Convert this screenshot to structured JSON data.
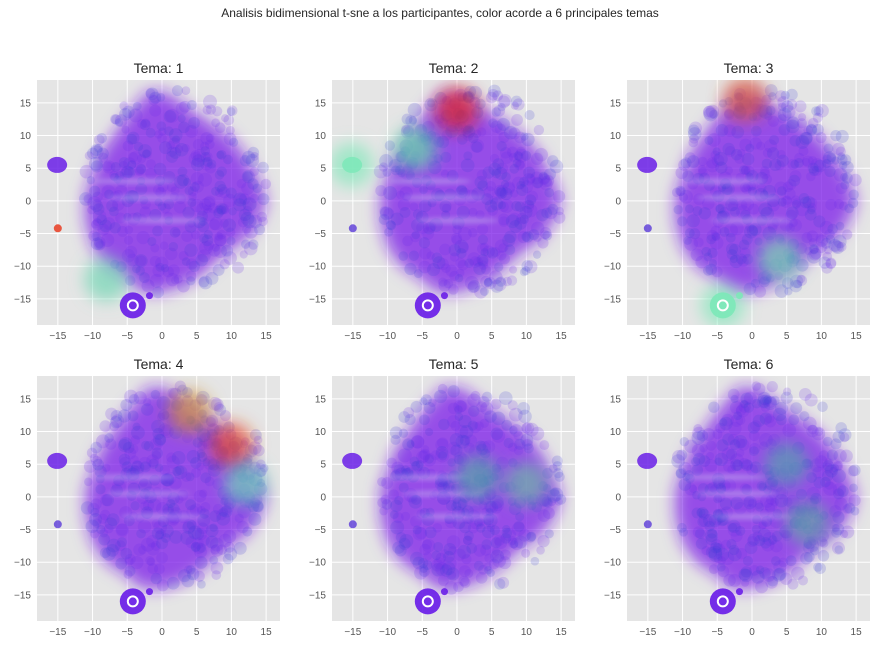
{
  "figure": {
    "suptitle": "Analisis bidimensional t-sne a los participantes, color acorde a 6 principales temas",
    "background": "#ffffff",
    "panel_background": "#e5e5e5",
    "grid_color": "#ffffff"
  },
  "chart_data": [
    {
      "type": "scatter",
      "title": "Tema: 1",
      "xlim": [
        -18,
        17
      ],
      "ylim": [
        -19,
        18.5
      ],
      "xticks": [
        -15,
        -10,
        -5,
        0,
        5,
        10,
        15
      ],
      "yticks": [
        -15,
        -10,
        -5,
        0,
        5,
        10,
        15
      ],
      "grid": true,
      "colormap": "rainbow",
      "base_color": "#7b1ce8",
      "highlight_regions": [
        {
          "x": -15,
          "y": -4.2,
          "color": "#e8452c",
          "note": "isolated point"
        },
        {
          "x": -8,
          "y": -12,
          "color": "#6ad6b0"
        }
      ]
    },
    {
      "type": "scatter",
      "title": "Tema: 2",
      "xlim": [
        -18,
        17
      ],
      "ylim": [
        -19,
        18.5
      ],
      "xticks": [
        -15,
        -10,
        -5,
        0,
        5,
        10,
        15
      ],
      "yticks": [
        -15,
        -10,
        -5,
        0,
        5,
        10,
        15
      ],
      "grid": true,
      "colormap": "rainbow",
      "base_color": "#7b1ce8",
      "highlight_regions": [
        {
          "x": 0,
          "y": 14,
          "color": "#e8220f"
        },
        {
          "x": -6,
          "y": 8,
          "color": "#5ee8a0"
        },
        {
          "x": -15.2,
          "y": 5.5,
          "color": "#7de8b8"
        }
      ]
    },
    {
      "type": "scatter",
      "title": "Tema: 3",
      "xlim": [
        -18,
        17
      ],
      "ylim": [
        -19,
        18.5
      ],
      "xticks": [
        -15,
        -10,
        -5,
        0,
        5,
        10,
        15
      ],
      "yticks": [
        -15,
        -10,
        -5,
        0,
        5,
        10,
        15
      ],
      "grid": true,
      "colormap": "rainbow",
      "base_color": "#7b1ce8",
      "highlight_regions": [
        {
          "x": -1,
          "y": 15.5,
          "color": "#e05a2a"
        },
        {
          "x": 4,
          "y": -9,
          "color": "#76e8a8"
        },
        {
          "x": -4.2,
          "y": -16,
          "color": "#7de8b8"
        }
      ]
    },
    {
      "type": "scatter",
      "title": "Tema: 4",
      "xlim": [
        -18,
        17
      ],
      "ylim": [
        -19,
        18.5
      ],
      "xticks": [
        -15,
        -10,
        -5,
        0,
        5,
        10,
        15
      ],
      "yticks": [
        -15,
        -10,
        -5,
        0,
        5,
        10,
        15
      ],
      "grid": true,
      "colormap": "rainbow",
      "base_color": "#7b1ce8",
      "highlight_regions": [
        {
          "x": 10,
          "y": 8,
          "color": "#e84a1c"
        },
        {
          "x": 4,
          "y": 13,
          "color": "#d09030"
        },
        {
          "x": 12,
          "y": 2,
          "color": "#6ae0b0"
        }
      ]
    },
    {
      "type": "scatter",
      "title": "Tema: 5",
      "xlim": [
        -18,
        17
      ],
      "ylim": [
        -19,
        18.5
      ],
      "xticks": [
        -15,
        -10,
        -5,
        0,
        5,
        10,
        15
      ],
      "yticks": [
        -15,
        -10,
        -5,
        0,
        5,
        10,
        15
      ],
      "grid": true,
      "colormap": "rainbow",
      "base_color": "#7b1ce8",
      "highlight_regions": [
        {
          "x": 3,
          "y": 3,
          "color": "#4fb0a0"
        },
        {
          "x": 10,
          "y": 2,
          "color": "#6ac0a0"
        }
      ]
    },
    {
      "type": "scatter",
      "title": "Tema: 6",
      "xlim": [
        -18,
        17
      ],
      "ylim": [
        -19,
        18.5
      ],
      "xticks": [
        -15,
        -10,
        -5,
        0,
        5,
        10,
        15
      ],
      "yticks": [
        -15,
        -10,
        -5,
        0,
        5,
        10,
        15
      ],
      "grid": true,
      "colormap": "rainbow",
      "base_color": "#7b1ce8",
      "highlight_regions": [
        {
          "x": 5,
          "y": 5,
          "color": "#50a8a8"
        },
        {
          "x": 8,
          "y": -4,
          "color": "#60b0a0"
        }
      ]
    }
  ]
}
